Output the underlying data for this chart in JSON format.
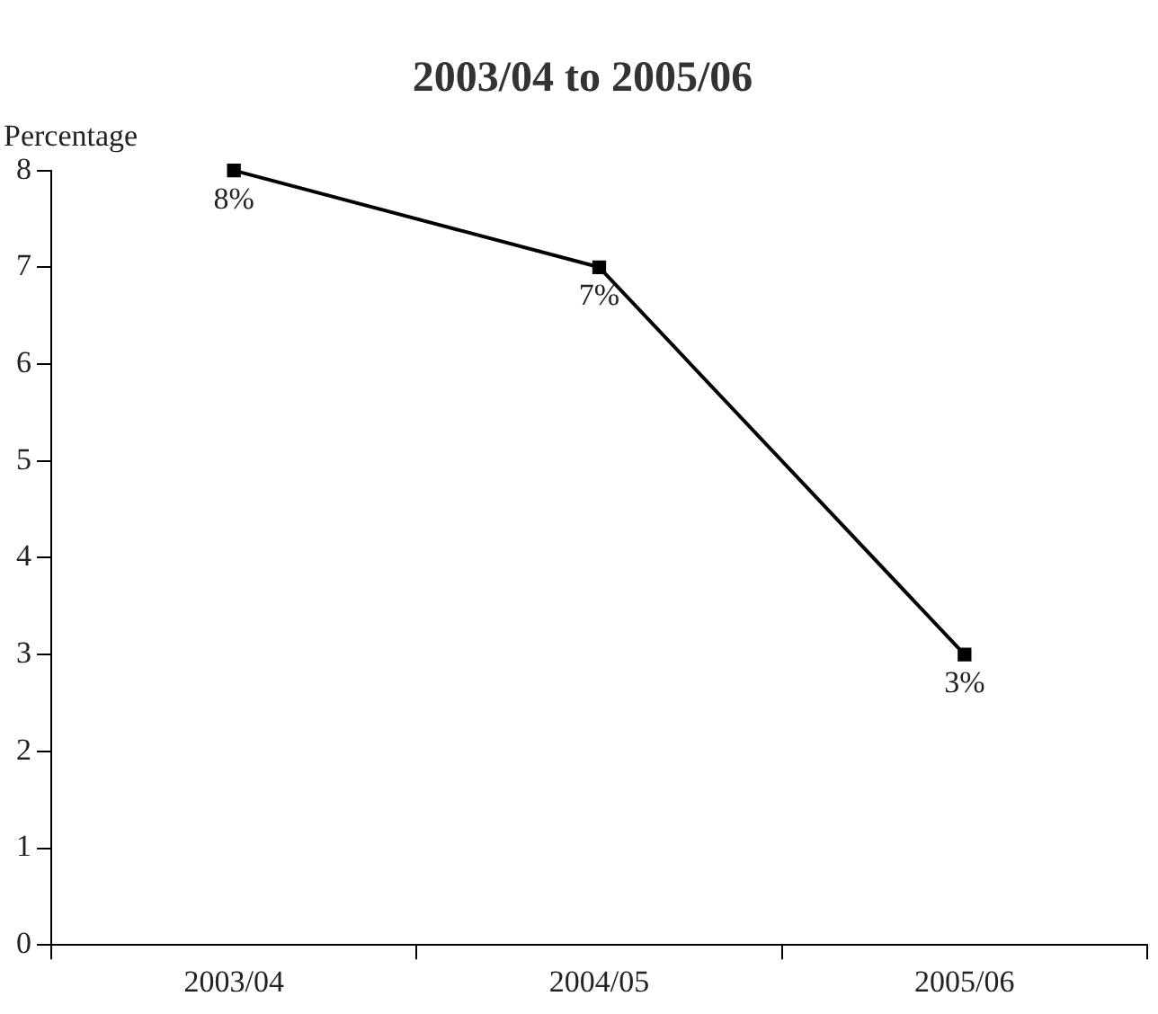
{
  "chart_data": {
    "type": "line",
    "title": "2003/04 to 2005/06",
    "ylabel": "Percentage",
    "categories": [
      "2003/04",
      "2004/05",
      "2005/06"
    ],
    "series": [
      {
        "color": "#000000",
        "values": [
          8,
          7,
          3
        ],
        "value_labels": [
          "8%",
          "7%",
          "3%"
        ]
      }
    ],
    "ylim": [
      0,
      8
    ],
    "yticks": [
      0,
      1,
      2,
      3,
      4,
      5,
      6,
      7,
      8
    ],
    "grid": false,
    "legend": false,
    "marker": "square",
    "line_style": "solid"
  }
}
